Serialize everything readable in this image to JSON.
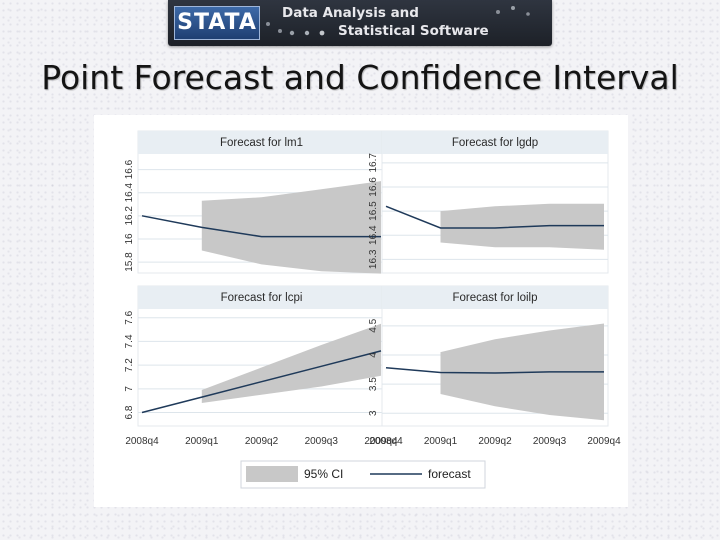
{
  "banner": {
    "logo_text": "STATA",
    "tagline_line1": "Data Analysis and",
    "tagline_line2": "Statistical Software"
  },
  "page": {
    "title": "Point Forecast and Confidence Interval"
  },
  "colors": {
    "ci_fill": "#c8c8c8",
    "forecast_line": "#1f3a5a",
    "panel_title_bg": "#e8eef3",
    "grid": "#dde5eb"
  },
  "chart_data": {
    "type": "line",
    "x_categories": [
      "2008q4",
      "2009q1",
      "2009q2",
      "2009q3",
      "2009q4"
    ],
    "legend": {
      "position": "bottom",
      "items": [
        {
          "label": "95% CI",
          "kind": "band"
        },
        {
          "label": "forecast",
          "kind": "line"
        }
      ]
    },
    "panels": [
      {
        "title": "Forecast for lm1",
        "y_ticks": [
          "15.8",
          "16",
          "16.2",
          "16.4",
          "16.6"
        ],
        "ylim": [
          15.74,
          16.7
        ],
        "forecast": [
          16.2,
          16.1,
          16.02,
          16.02,
          16.02
        ],
        "ci_lower": [
          null,
          15.9,
          15.78,
          15.72,
          15.7
        ],
        "ci_upper": [
          null,
          16.33,
          16.36,
          16.43,
          16.5
        ]
      },
      {
        "title": "Forecast for lgdp",
        "y_ticks": [
          "16.3",
          "16.4",
          "16.5",
          "16.6",
          "16.7"
        ],
        "ylim": [
          16.26,
          16.72
        ],
        "forecast": [
          16.52,
          16.43,
          16.43,
          16.44,
          16.44
        ],
        "ci_lower": [
          null,
          16.37,
          16.35,
          16.35,
          16.34
        ],
        "ci_upper": [
          null,
          16.5,
          16.52,
          16.53,
          16.53
        ]
      },
      {
        "title": "Forecast for lcpi",
        "y_ticks": [
          "6.8",
          "7",
          "7.2",
          "7.4",
          "7.6"
        ],
        "ylim": [
          6.72,
          7.64
        ],
        "forecast": [
          6.8,
          6.93,
          7.06,
          7.19,
          7.32
        ],
        "ci_lower": [
          null,
          6.88,
          6.95,
          7.02,
          7.11
        ],
        "ci_upper": [
          null,
          6.99,
          7.18,
          7.37,
          7.55
        ]
      },
      {
        "title": "Forecast for loilp",
        "y_ticks": [
          "3",
          "3.5",
          "4",
          "4.5"
        ],
        "ylim": [
          2.85,
          4.72
        ],
        "forecast": [
          3.78,
          3.7,
          3.69,
          3.71,
          3.71
        ],
        "ci_lower": [
          null,
          3.33,
          3.12,
          2.97,
          2.88
        ],
        "ci_upper": [
          null,
          4.05,
          4.27,
          4.42,
          4.54
        ]
      }
    ]
  }
}
